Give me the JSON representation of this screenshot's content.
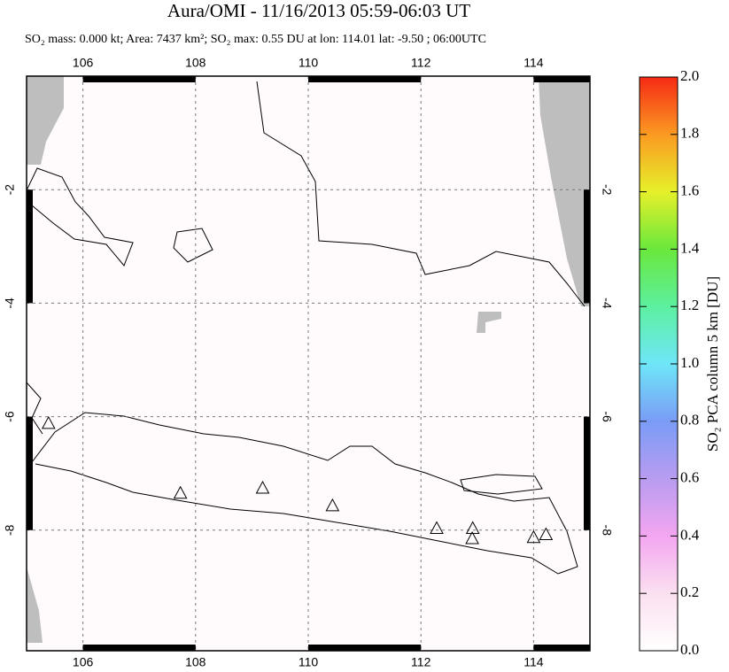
{
  "chart_data": {
    "type": "map",
    "title": "Aura/OMI - 11/16/2013 05:59-06:03 UT",
    "subtitle": "SO₂ mass: 0.000 kt; Area: 7437 km²; SO₂ max: 0.55 DU at lon: 114.01 lat: -9.50 ; 06:00UTC",
    "xlim": [
      105,
      115
    ],
    "ylim": [
      -10.125,
      0
    ],
    "xticks": [
      106,
      108,
      110,
      112,
      114
    ],
    "yticks": [
      -2,
      -4,
      -6,
      -8
    ],
    "grid": true,
    "volcanoes": {
      "x": [
        105.39,
        107.73,
        109.19,
        110.43,
        112.28,
        112.92,
        112.91,
        114.0,
        114.22
      ],
      "y": [
        -6.13,
        -7.36,
        -7.27,
        -7.58,
        -7.98,
        -7.98,
        -8.16,
        -8.14,
        -8.09
      ]
    },
    "colorbar": {
      "label": "SO₂ PCA column 5 km [DU]",
      "lim": [
        0,
        2
      ],
      "ticks": [
        {
          "value": 0,
          "label": "0.0"
        },
        0.2,
        0.4,
        0.6,
        0.8,
        {
          "value": 1,
          "label": "1.0"
        },
        1.2,
        1.4,
        1.6,
        1.8,
        {
          "value": 2,
          "label": "2.0"
        }
      ]
    }
  }
}
